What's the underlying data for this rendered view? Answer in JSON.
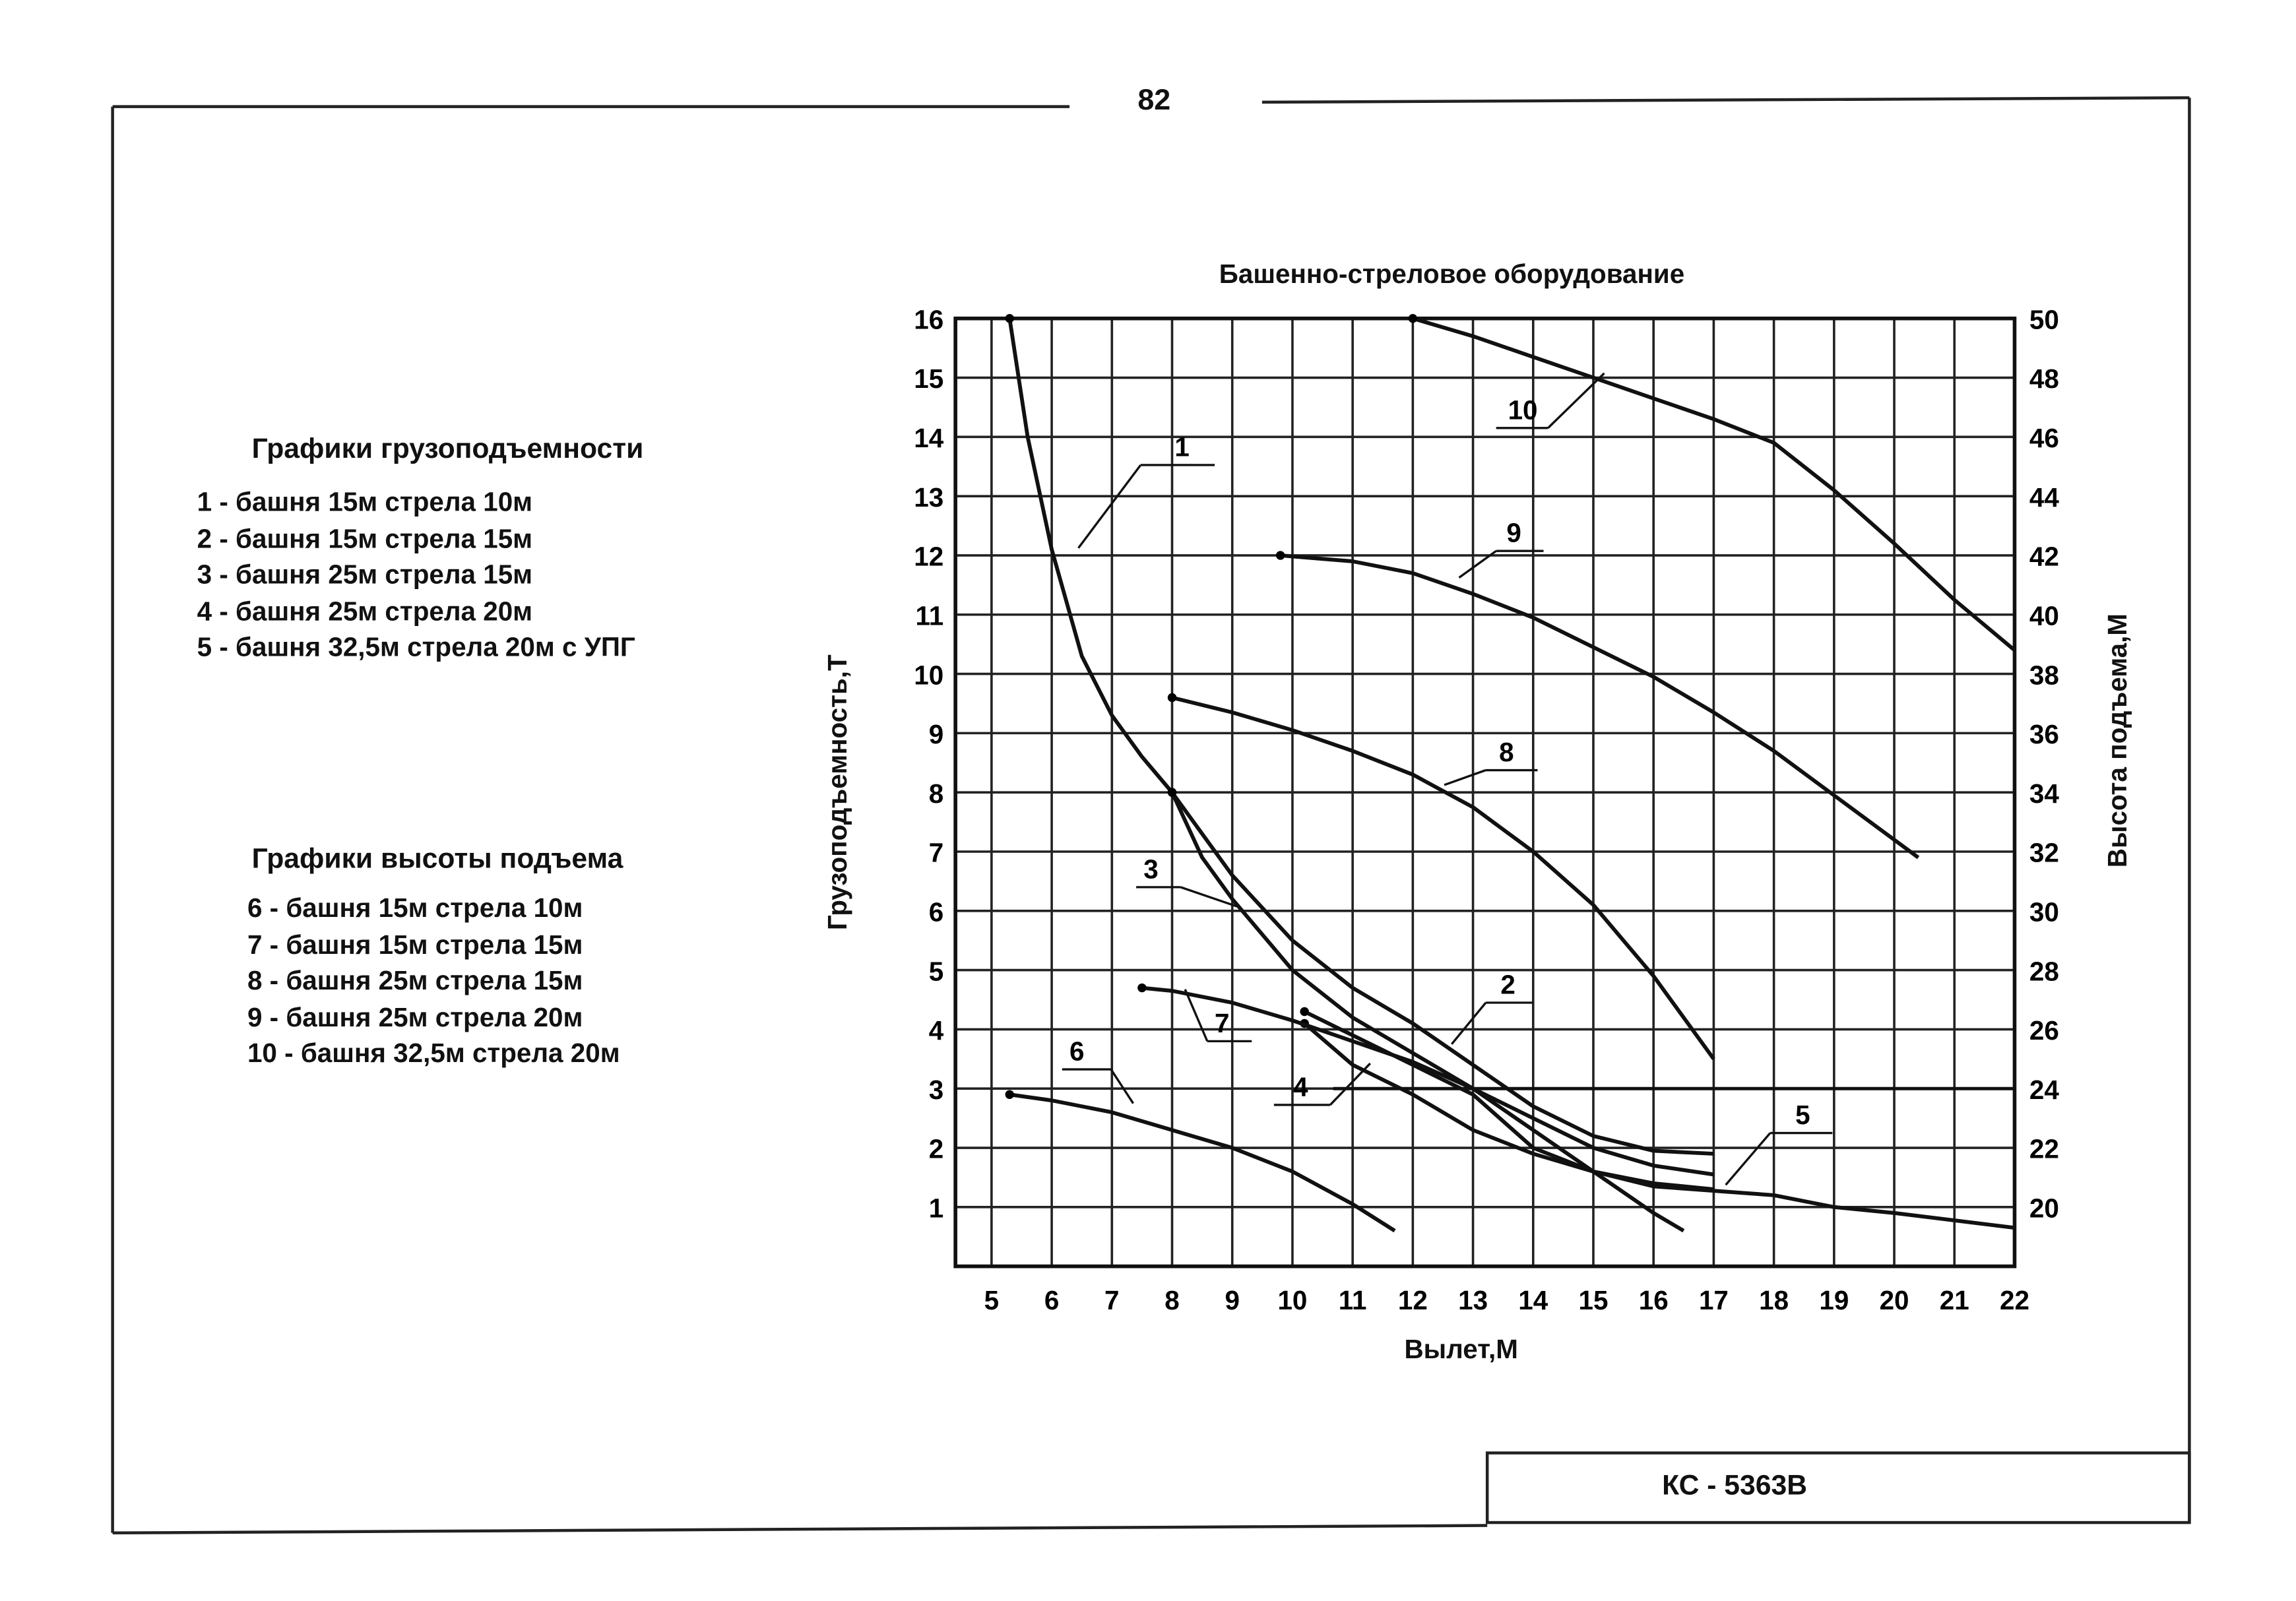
{
  "page_number": "82",
  "model": "КС - 5363В",
  "legend_load": {
    "title": "Графики грузоподъемности",
    "items": [
      "1 - башня 15м стрела 10м",
      "2 - башня 15м стрела 15м",
      "3 - башня 25м стрела 15м",
      "4 - башня 25м стрела 20м",
      "5 - башня 32,5м стрела 20м с УПГ"
    ]
  },
  "legend_height": {
    "title": "Графики высоты подъема",
    "items": [
      "6 - башня 15м стрела 10м",
      "7 - башня 15м стрела 15м",
      "8 - башня 25м стрела 15м",
      "9 - башня 25м стрела 20м",
      "10 - башня 32,5м стрела 20м"
    ]
  },
  "chart_data": {
    "type": "line",
    "title": "Башенно-стреловое оборудование",
    "xlabel": "Вылет,М",
    "ylabel": "Грузоподъемность,Т",
    "y2label": "Высота подъема,М",
    "xlim": [
      4.4,
      22
    ],
    "ylim": [
      0,
      16
    ],
    "y2lim": [
      18,
      50
    ],
    "xticks": [
      "5",
      "6",
      "7",
      "8",
      "9",
      "10",
      "11",
      "12",
      "13",
      "14",
      "15",
      "16",
      "17",
      "18",
      "19",
      "20",
      "21",
      "22"
    ],
    "yticks": [
      "1",
      "2",
      "3",
      "4",
      "5",
      "6",
      "7",
      "8",
      "9",
      "10",
      "11",
      "12",
      "13",
      "14",
      "15",
      "16"
    ],
    "y2ticks": [
      "20",
      "22",
      "24",
      "26",
      "28",
      "30",
      "32",
      "34",
      "36",
      "38",
      "40",
      "42",
      "44",
      "46",
      "48",
      "50"
    ],
    "grid": true,
    "series": [
      {
        "name": "1",
        "axis": "left",
        "points": [
          [
            5.3,
            16
          ],
          [
            5.6,
            14
          ],
          [
            6,
            12.1
          ],
          [
            6.5,
            10.3
          ],
          [
            7,
            9.3
          ],
          [
            7.5,
            8.6
          ],
          [
            8,
            8.0
          ]
        ]
      },
      {
        "name": "2",
        "axis": "left",
        "points": [
          [
            8,
            8
          ],
          [
            9,
            6.6
          ],
          [
            10,
            5.5
          ],
          [
            11,
            4.7
          ],
          [
            12,
            4.1
          ],
          [
            13,
            3.4
          ],
          [
            14,
            2.7
          ],
          [
            15,
            2.2
          ],
          [
            16,
            1.95
          ],
          [
            17,
            1.9
          ]
        ]
      },
      {
        "name": "3",
        "axis": "left",
        "points": [
          [
            8,
            8
          ],
          [
            8.5,
            6.9
          ],
          [
            9,
            6.2
          ],
          [
            10,
            5.0
          ],
          [
            11,
            4.2
          ],
          [
            12,
            3.6
          ],
          [
            13,
            3.0
          ],
          [
            14,
            2.3
          ],
          [
            15,
            1.6
          ],
          [
            16,
            0.9
          ],
          [
            16.5,
            0.6
          ]
        ]
      },
      {
        "name": "4",
        "axis": "left",
        "points": [
          [
            10.2,
            4.1
          ],
          [
            11,
            3.4
          ],
          [
            12,
            2.9
          ],
          [
            13,
            2.3
          ],
          [
            14,
            1.9
          ],
          [
            15,
            1.6
          ],
          [
            16,
            1.4
          ],
          [
            17,
            1.3
          ]
        ]
      },
      {
        "name": "5",
        "axis": "left",
        "points": [
          [
            10.2,
            4.3
          ],
          [
            11,
            3.9
          ],
          [
            12,
            3.4
          ],
          [
            13,
            2.9
          ],
          [
            14,
            2.0
          ],
          [
            15,
            1.6
          ],
          [
            16,
            1.35
          ],
          [
            18,
            1.2
          ],
          [
            19,
            1.0
          ],
          [
            20,
            0.9
          ],
          [
            22,
            0.65
          ]
        ]
      },
      {
        "name": "6",
        "axis": "right",
        "points": [
          [
            5.3,
            23.8
          ],
          [
            6,
            23.6
          ],
          [
            7,
            23.2
          ],
          [
            8,
            22.6
          ],
          [
            9,
            22.0
          ],
          [
            10,
            21.2
          ],
          [
            11,
            20.1
          ],
          [
            11.7,
            19.2
          ]
        ]
      },
      {
        "name": "7",
        "axis": "right",
        "points": [
          [
            7.5,
            27.4
          ],
          [
            8,
            27.3
          ],
          [
            9,
            26.9
          ],
          [
            10,
            26.3
          ],
          [
            11,
            25.6
          ],
          [
            12,
            24.9
          ],
          [
            13,
            24.0
          ],
          [
            14,
            23.0
          ],
          [
            15,
            22.0
          ],
          [
            16,
            21.4
          ],
          [
            17,
            21.1
          ]
        ]
      },
      {
        "name": "8",
        "axis": "right",
        "points": [
          [
            8,
            37.2
          ],
          [
            9,
            36.7
          ],
          [
            10,
            36.1
          ],
          [
            11,
            35.4
          ],
          [
            12,
            34.6
          ],
          [
            13,
            33.5
          ],
          [
            14,
            32
          ],
          [
            15,
            30.2
          ],
          [
            16,
            27.8
          ],
          [
            17,
            25
          ]
        ]
      },
      {
        "name": "9",
        "axis": "right",
        "points": [
          [
            9.8,
            42
          ],
          [
            11,
            41.8
          ],
          [
            12,
            41.4
          ],
          [
            13,
            40.7
          ],
          [
            14,
            39.9
          ],
          [
            15,
            38.9
          ],
          [
            16,
            37.9
          ],
          [
            17,
            36.7
          ],
          [
            18,
            35.4
          ],
          [
            19,
            33.9
          ],
          [
            20.4,
            31.8
          ]
        ]
      },
      {
        "name": "10",
        "axis": "right",
        "points": [
          [
            12,
            50
          ],
          [
            13,
            49.4
          ],
          [
            14,
            48.7
          ],
          [
            15,
            48
          ],
          [
            16,
            47.3
          ],
          [
            17,
            46.6
          ],
          [
            18,
            45.8
          ],
          [
            19,
            44.2
          ],
          [
            20,
            42.4
          ],
          [
            21,
            40.5
          ],
          [
            22,
            38.8
          ]
        ]
      }
    ]
  }
}
